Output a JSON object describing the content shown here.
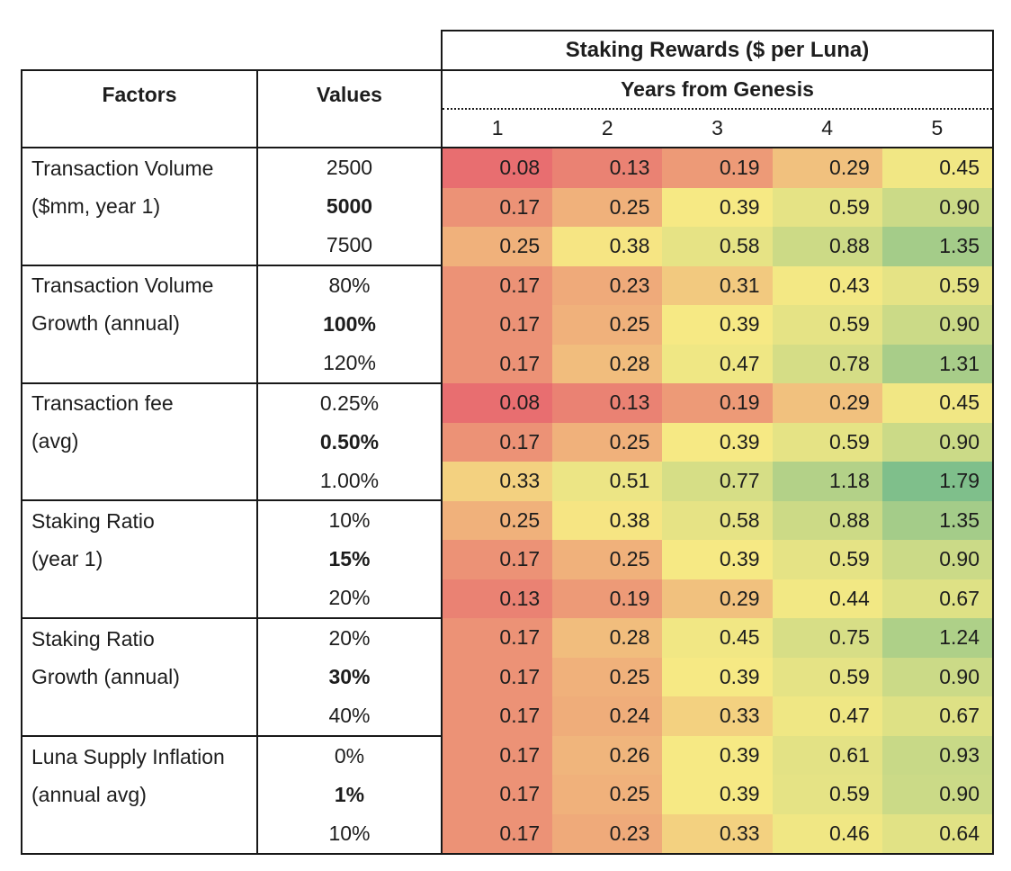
{
  "table": {
    "factors_header": "Factors",
    "values_header": "Values"
  },
  "chart_data": {
    "type": "heatmap",
    "title": "Staking Rewards ($ per Luna)",
    "x_axis_label": "Years from Genesis",
    "x": [
      "1",
      "2",
      "3",
      "4",
      "5"
    ],
    "cell_format": "0.00",
    "legend": "none",
    "grid": "none",
    "color_scale": {
      "min_color": "#E86E70",
      "mid_color": "#F6E984",
      "max_color": "#7FBF8B",
      "min_value": 0.08,
      "mid_value": 0.39,
      "max_value": 1.79
    },
    "groups": [
      {
        "factor": [
          "Transaction Volume",
          "($mm, year 1)"
        ],
        "rows": [
          {
            "value": "2500",
            "bold": false,
            "cells": [
              0.08,
              0.13,
              0.19,
              0.29,
              0.45
            ]
          },
          {
            "value": "5000",
            "bold": true,
            "cells": [
              0.17,
              0.25,
              0.39,
              0.59,
              0.9
            ]
          },
          {
            "value": "7500",
            "bold": false,
            "cells": [
              0.25,
              0.38,
              0.58,
              0.88,
              1.35
            ]
          }
        ]
      },
      {
        "factor": [
          "Transaction Volume",
          "Growth (annual)"
        ],
        "rows": [
          {
            "value": "80%",
            "bold": false,
            "cells": [
              0.17,
              0.23,
              0.31,
              0.43,
              0.59
            ]
          },
          {
            "value": "100%",
            "bold": true,
            "cells": [
              0.17,
              0.25,
              0.39,
              0.59,
              0.9
            ]
          },
          {
            "value": "120%",
            "bold": false,
            "cells": [
              0.17,
              0.28,
              0.47,
              0.78,
              1.31
            ]
          }
        ]
      },
      {
        "factor": [
          "Transaction fee",
          "(avg)"
        ],
        "rows": [
          {
            "value": "0.25%",
            "bold": false,
            "cells": [
              0.08,
              0.13,
              0.19,
              0.29,
              0.45
            ]
          },
          {
            "value": "0.50%",
            "bold": true,
            "cells": [
              0.17,
              0.25,
              0.39,
              0.59,
              0.9
            ]
          },
          {
            "value": "1.00%",
            "bold": false,
            "cells": [
              0.33,
              0.51,
              0.77,
              1.18,
              1.79
            ]
          }
        ]
      },
      {
        "factor": [
          "Staking Ratio",
          "(year 1)"
        ],
        "rows": [
          {
            "value": "10%",
            "bold": false,
            "cells": [
              0.25,
              0.38,
              0.58,
              0.88,
              1.35
            ]
          },
          {
            "value": "15%",
            "bold": true,
            "cells": [
              0.17,
              0.25,
              0.39,
              0.59,
              0.9
            ]
          },
          {
            "value": "20%",
            "bold": false,
            "cells": [
              0.13,
              0.19,
              0.29,
              0.44,
              0.67
            ]
          }
        ]
      },
      {
        "factor": [
          "Staking Ratio",
          "Growth (annual)"
        ],
        "rows": [
          {
            "value": "20%",
            "bold": false,
            "cells": [
              0.17,
              0.28,
              0.45,
              0.75,
              1.24
            ]
          },
          {
            "value": "30%",
            "bold": true,
            "cells": [
              0.17,
              0.25,
              0.39,
              0.59,
              0.9
            ]
          },
          {
            "value": "40%",
            "bold": false,
            "cells": [
              0.17,
              0.24,
              0.33,
              0.47,
              0.67
            ]
          }
        ]
      },
      {
        "factor": [
          "Luna Supply Inflation",
          "(annual avg)"
        ],
        "rows": [
          {
            "value": "0%",
            "bold": false,
            "cells": [
              0.17,
              0.26,
              0.39,
              0.61,
              0.93
            ]
          },
          {
            "value": "1%",
            "bold": true,
            "cells": [
              0.17,
              0.25,
              0.39,
              0.59,
              0.9
            ]
          },
          {
            "value": "10%",
            "bold": false,
            "cells": [
              0.17,
              0.23,
              0.33,
              0.46,
              0.64
            ]
          }
        ]
      }
    ]
  }
}
